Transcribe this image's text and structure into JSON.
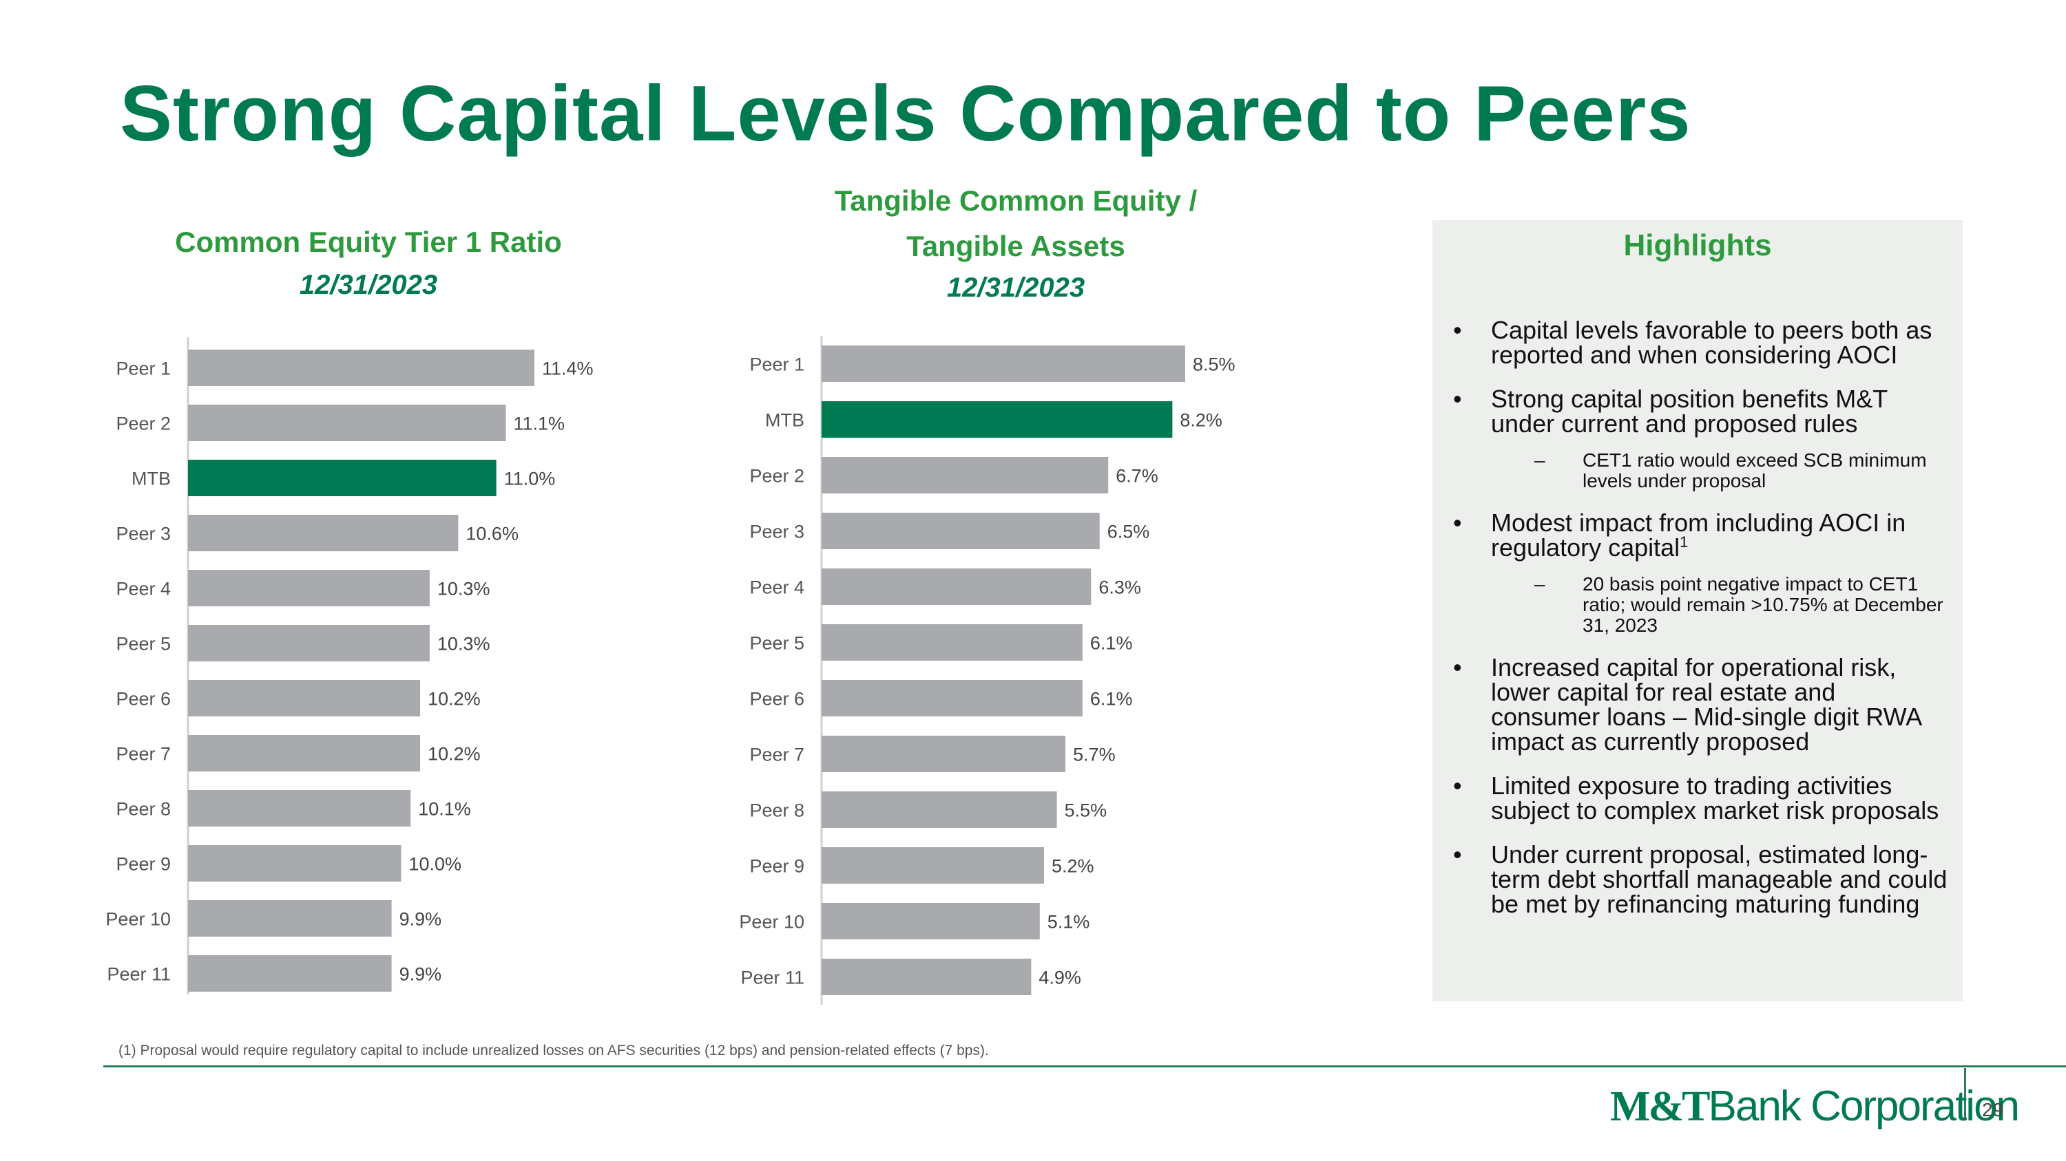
{
  "page": {
    "title": "Strong Capital Levels Compared to Peers",
    "footnote": "(1) Proposal would require regulatory capital to include unrealized losses on AFS securities (12 bps) and pension-related effects (7 bps).",
    "page_number": "29"
  },
  "logo": {
    "bold_part": "M&T",
    "rest": "Bank Corporation"
  },
  "colors": {
    "accent": "#007a53",
    "highlight_bar": "#007a53",
    "peer_bar": "#a9aaae",
    "subtitle_green": "#2e9a3e"
  },
  "chart_data": [
    {
      "type": "bar",
      "orientation": "horizontal",
      "title": "Common Equity Tier 1 Ratio",
      "subtitle": "12/31/2023",
      "categories": [
        "Peer 1",
        "Peer 2",
        "MTB",
        "Peer 3",
        "Peer 4",
        "Peer 5",
        "Peer 6",
        "Peer 7",
        "Peer 8",
        "Peer 9",
        "Peer 10",
        "Peer 11"
      ],
      "values": [
        11.4,
        11.1,
        11.0,
        10.6,
        10.3,
        10.3,
        10.2,
        10.2,
        10.1,
        10.0,
        9.9,
        9.9
      ],
      "labels": [
        "11.4%",
        "11.1%",
        "11.0%",
        "10.6%",
        "10.3%",
        "10.3%",
        "10.2%",
        "10.2%",
        "10.1%",
        "10.0%",
        "9.9%",
        "9.9%"
      ],
      "highlight": "MTB",
      "xlim": [
        9.1,
        11.4
      ]
    },
    {
      "type": "bar",
      "orientation": "horizontal",
      "title_lines": [
        "Tangible Common Equity /",
        "Tangible Assets"
      ],
      "subtitle": "12/31/2023",
      "categories": [
        "Peer 1",
        "MTB",
        "Peer 2",
        "Peer 3",
        "Peer 4",
        "Peer 5",
        "Peer 6",
        "Peer 7",
        "Peer 8",
        "Peer 9",
        "Peer 10",
        "Peer 11"
      ],
      "values": [
        8.5,
        8.2,
        6.7,
        6.5,
        6.3,
        6.1,
        6.1,
        5.7,
        5.5,
        5.2,
        5.1,
        4.9
      ],
      "labels": [
        "8.5%",
        "8.2%",
        "6.7%",
        "6.5%",
        "6.3%",
        "6.1%",
        "6.1%",
        "5.7%",
        "5.5%",
        "5.2%",
        "5.1%",
        "4.9%"
      ],
      "highlight": "MTB",
      "xlim": [
        0,
        8.5
      ]
    }
  ],
  "highlights": {
    "title": "Highlights",
    "bullet_symbol": "•",
    "dash_symbol": "–",
    "items": [
      {
        "text": "Capital levels favorable to peers both as reported and when considering AOCI"
      },
      {
        "text": "Strong capital position benefits M&T under current and proposed rules",
        "sub": "CET1 ratio would exceed SCB minimum levels under proposal"
      },
      {
        "text": "Modest impact from including AOCI in regulatory capital",
        "sup": "1",
        "sub": "20 basis point negative impact to CET1 ratio; would remain >10.75% at December 31, 2023"
      },
      {
        "text": "Increased capital for operational risk, lower capital for real estate and consumer loans – Mid-single digit RWA impact as currently proposed"
      },
      {
        "text": "Limited exposure to trading activities subject to complex market risk proposals"
      },
      {
        "text": "Under current proposal, estimated long-term debt shortfall manageable and could be met by refinancing maturing funding"
      }
    ]
  }
}
